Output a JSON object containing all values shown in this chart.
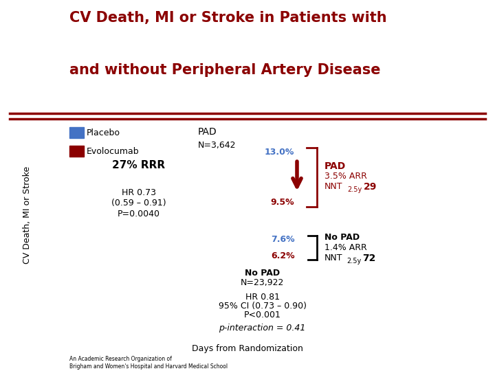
{
  "title_line1": "CV Death, MI or Stroke in Patients with",
  "title_line2": "and without Peripheral Artery Disease",
  "title_color": "#8B0000",
  "background_color": "#FFFFFF",
  "separator_color": "#8B0000",
  "legend_labels": [
    "Placebo",
    "Evolocumab"
  ],
  "legend_colors": [
    "#4472C4",
    "#8B0000"
  ],
  "pad_label": "PAD",
  "pad_n": "N=3,642",
  "rrr_text": "27% RRR",
  "hr_text_pad_1": "HR 0.73",
  "hr_text_pad_2": "(0.59 – 0.91)",
  "hr_text_pad_3": "P=0.0040",
  "pad_placebo_pct": "13.0%",
  "pad_evolo_pct": "9.5%",
  "no_pad_label": "No PAD",
  "no_pad_n": "N=23,922",
  "hr_text_nopad_1": "HR 0.81",
  "hr_text_nopad_2": "95% CI (0.73 – 0.90)",
  "hr_text_nopad_3": "P<0.001",
  "no_pad_placebo_pct": "7.6%",
  "no_pad_evolo_pct": "6.2%",
  "p_interaction": "p-interaction = 0.41",
  "xlabel": "Days from Randomization",
  "ylabel": "CV Death, MI or Stroke",
  "blue_color": "#4472C4",
  "dark_red": "#8B0000",
  "black": "#000000",
  "footer": "An Academic Research Organization of\nBrigham and Women's Hospital and Harvard Medical School"
}
